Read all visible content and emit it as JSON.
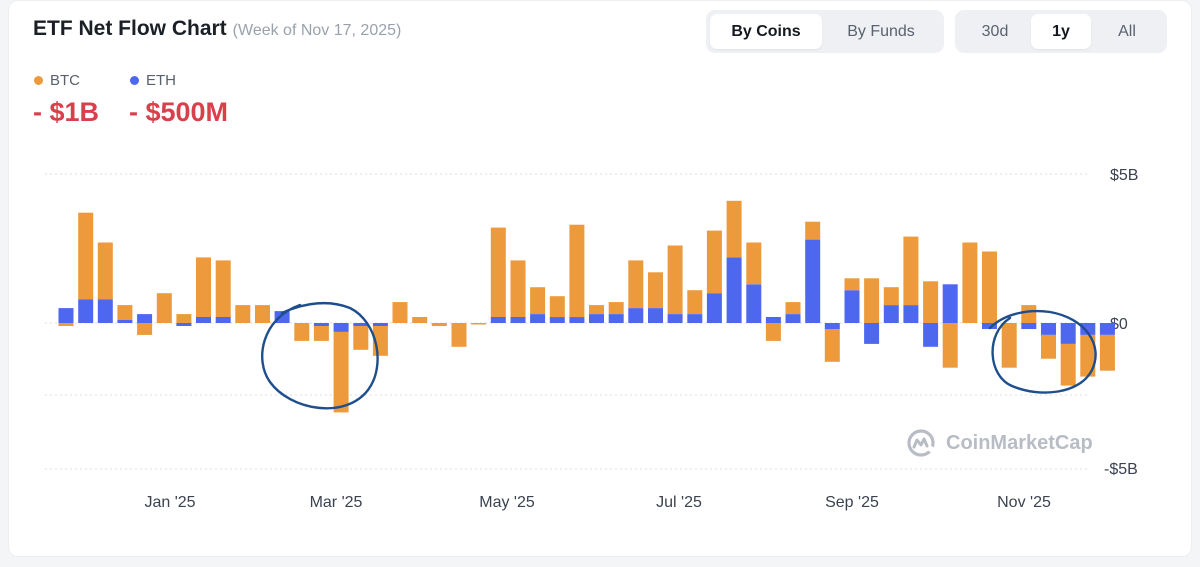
{
  "header": {
    "title": "ETF Net Flow Chart",
    "subtitle": "(Week of Nov 17, 2025)"
  },
  "toggles": {
    "coins": [
      "By Coins",
      "By Funds"
    ],
    "coins_active": 0,
    "range": [
      "30d",
      "1y",
      "All"
    ],
    "range_active": 1
  },
  "legend": {
    "btc_label": "BTC",
    "eth_label": "ETH",
    "btc_total": "- $1B",
    "eth_total": "- $500M",
    "btc_color": "#ec9a3c",
    "eth_color": "#4d68ee",
    "total_color": "#d9404c"
  },
  "watermark": "CoinMarketCap",
  "chart_data": {
    "type": "bar",
    "stacked": true,
    "x_tick_labels": [
      "Jan '25",
      "Mar '25",
      "May '25",
      "Jul '25",
      "Sep '25",
      "Nov '25"
    ],
    "y_tick_labels": [
      "$5B",
      "$0",
      "-$5B"
    ],
    "ylim": [
      -5,
      5
    ],
    "y_unit": "$B",
    "grid": true,
    "legend_position": "top-left",
    "series": [
      {
        "name": "BTC",
        "color": "#ec9a3c",
        "values": [
          -0.1,
          2.9,
          1.9,
          0.5,
          -0.4,
          1.0,
          0.3,
          2.0,
          1.9,
          0.6,
          0.6,
          0.0,
          -0.6,
          -0.5,
          -2.7,
          -0.8,
          -1.0,
          0.7,
          0.2,
          -0.1,
          -0.8,
          -0.05,
          3.0,
          1.9,
          0.9,
          0.7,
          3.1,
          0.3,
          0.4,
          1.6,
          1.2,
          2.3,
          0.8,
          2.1,
          1.9,
          1.4,
          -0.6,
          0.4,
          0.6,
          -1.1,
          0.4,
          1.5,
          0.6,
          2.3,
          1.4,
          -1.5,
          2.7,
          2.4,
          -1.5,
          0.6,
          -0.8,
          -1.4,
          -1.4,
          -1.2
        ],
        "marks": 54
      },
      {
        "name": "ETH",
        "color": "#4d68ee",
        "values": [
          0.5,
          0.8,
          0.8,
          0.1,
          0.3,
          0.0,
          -0.1,
          0.2,
          0.2,
          0.0,
          0.0,
          0.4,
          0.0,
          -0.1,
          -0.3,
          -0.1,
          -0.1,
          0.0,
          0.0,
          0.0,
          0.0,
          0.0,
          0.2,
          0.2,
          0.3,
          0.2,
          0.2,
          0.3,
          0.3,
          0.5,
          0.5,
          0.3,
          0.3,
          1.0,
          2.2,
          1.3,
          0.2,
          0.3,
          2.8,
          -0.2,
          1.1,
          -0.7,
          0.6,
          0.6,
          -0.8,
          1.3,
          0.0,
          -0.2,
          0.0,
          -0.2,
          -0.4,
          -0.7,
          -0.4,
          -0.4
        ],
        "marks": 54
      }
    ]
  }
}
